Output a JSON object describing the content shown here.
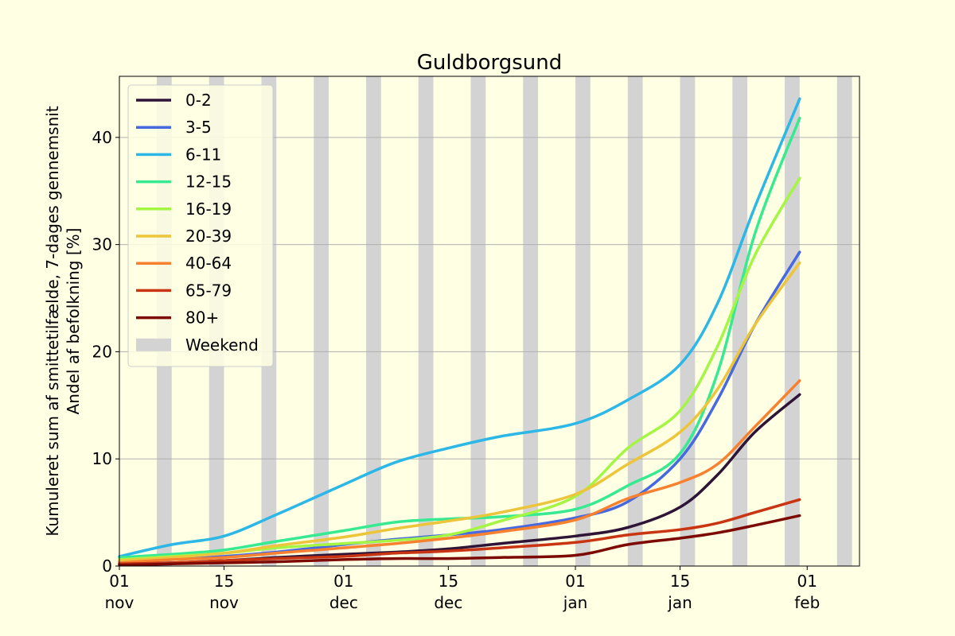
{
  "chart_data": {
    "type": "line",
    "title": "Guldborgsund",
    "ylabel_line1": "Kumuleret sum af smittetilfælde, 7-dages gennemsnit",
    "ylabel_line2": "Andel af befolkning [%]",
    "xlim": [
      "2021-11-01",
      "2022-02-08"
    ],
    "ylim": [
      0,
      45.7
    ],
    "yticks": [
      0,
      10,
      20,
      30,
      40
    ],
    "xticks": [
      {
        "date": "2021-11-01",
        "label1": "01",
        "label2": "nov"
      },
      {
        "date": "2021-11-15",
        "label1": "15",
        "label2": "nov"
      },
      {
        "date": "2021-12-01",
        "label1": "01",
        "label2": "dec"
      },
      {
        "date": "2021-12-15",
        "label1": "15",
        "label2": "dec"
      },
      {
        "date": "2022-01-01",
        "label1": "01",
        "label2": "jan"
      },
      {
        "date": "2022-01-15",
        "label1": "15",
        "label2": "jan"
      },
      {
        "date": "2022-02-01",
        "label1": "01",
        "label2": "feb"
      }
    ],
    "grid": "y",
    "legend_position": "upper-left",
    "weekend_label": "Weekend",
    "weekend_color": "#d3d3d3",
    "weekend_dates": [
      "2021-11-06",
      "2021-11-13",
      "2021-11-20",
      "2021-11-27",
      "2021-12-04",
      "2021-12-11",
      "2021-12-18",
      "2021-12-25",
      "2022-01-01",
      "2022-01-08",
      "2022-01-15",
      "2022-01-22",
      "2022-01-29",
      "2022-02-05"
    ],
    "x": [
      "2021-11-01",
      "2021-11-08",
      "2021-11-15",
      "2021-11-22",
      "2021-12-01",
      "2021-12-08",
      "2021-12-15",
      "2021-12-22",
      "2022-01-01",
      "2022-01-08",
      "2022-01-15",
      "2022-01-20",
      "2022-01-25",
      "2022-01-31"
    ],
    "series": [
      {
        "name": "0-2",
        "color": "#2e1436",
        "values": [
          0.2,
          0.3,
          0.5,
          0.8,
          1.1,
          1.3,
          1.6,
          2.1,
          2.8,
          3.6,
          5.5,
          8.5,
          12.5,
          16.0
        ]
      },
      {
        "name": "3-5",
        "color": "#4669e0",
        "values": [
          0.4,
          0.6,
          0.9,
          1.3,
          2.0,
          2.5,
          2.9,
          3.4,
          4.5,
          6.0,
          10.0,
          15.5,
          22.5,
          29.3
        ]
      },
      {
        "name": "6-11",
        "color": "#2cb7e7",
        "values": [
          0.9,
          2.0,
          2.8,
          4.8,
          7.6,
          9.7,
          11.0,
          12.1,
          13.3,
          15.5,
          18.8,
          24.5,
          33.5,
          43.6
        ]
      },
      {
        "name": "12-15",
        "color": "#37ea92",
        "values": [
          0.8,
          1.1,
          1.5,
          2.3,
          3.3,
          4.1,
          4.4,
          4.6,
          5.3,
          7.5,
          10.5,
          18.0,
          31.0,
          41.8
        ]
      },
      {
        "name": "16-19",
        "color": "#a4f544",
        "values": [
          0.6,
          0.9,
          1.2,
          1.7,
          2.1,
          2.4,
          2.9,
          4.2,
          6.5,
          11.0,
          14.5,
          20.5,
          29.0,
          36.2
        ]
      },
      {
        "name": "20-39",
        "color": "#edc53b",
        "values": [
          0.5,
          0.8,
          1.2,
          1.9,
          2.7,
          3.5,
          4.2,
          5.0,
          6.7,
          9.5,
          12.5,
          16.5,
          22.5,
          28.3
        ]
      },
      {
        "name": "40-64",
        "color": "#f7812e",
        "values": [
          0.3,
          0.6,
          0.8,
          1.2,
          1.7,
          2.1,
          2.6,
          3.2,
          4.3,
          6.3,
          7.8,
          9.5,
          13.0,
          17.3
        ]
      },
      {
        "name": "65-79",
        "color": "#c93512",
        "values": [
          0.2,
          0.3,
          0.5,
          0.7,
          0.9,
          1.2,
          1.4,
          1.7,
          2.2,
          2.9,
          3.4,
          4.0,
          5.0,
          6.2
        ]
      },
      {
        "name": "80+",
        "color": "#7c0a03",
        "values": [
          0.1,
          0.2,
          0.3,
          0.4,
          0.6,
          0.7,
          0.7,
          0.8,
          1.0,
          2.0,
          2.6,
          3.1,
          3.8,
          4.7
        ]
      }
    ]
  }
}
